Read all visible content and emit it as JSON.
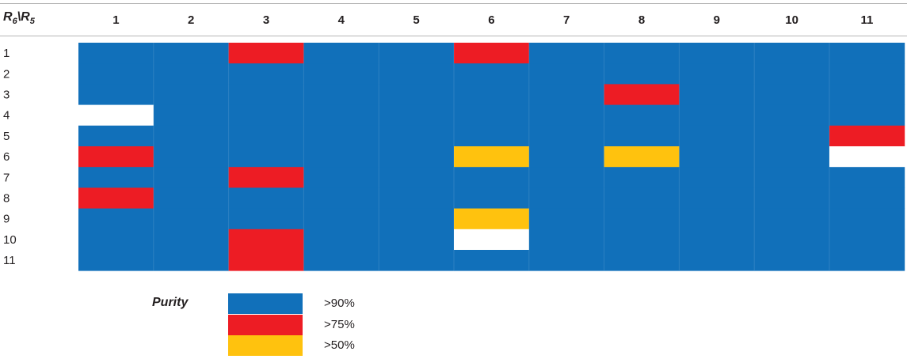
{
  "chart_data": {
    "type": "heatmap",
    "corner_label": {
      "row_var": "R",
      "row_sub": "6",
      "col_var": "R",
      "col_sub": "5"
    },
    "columns": [
      "1",
      "2",
      "3",
      "4",
      "5",
      "6",
      "7",
      "8",
      "9",
      "10",
      "11"
    ],
    "rows": [
      "1",
      "2",
      "3",
      "4",
      "5",
      "6",
      "7",
      "8",
      "9",
      "10",
      "11"
    ],
    "cells": [
      [
        "blue",
        "blue",
        "red",
        "blue",
        "blue",
        "red",
        "blue",
        "blue",
        "blue",
        "blue",
        "blue"
      ],
      [
        "blue",
        "blue",
        "blue",
        "blue",
        "blue",
        "blue",
        "blue",
        "blue",
        "blue",
        "blue",
        "blue"
      ],
      [
        "blue",
        "blue",
        "blue",
        "blue",
        "blue",
        "blue",
        "blue",
        "red",
        "blue",
        "blue",
        "blue"
      ],
      [
        "none",
        "blue",
        "blue",
        "blue",
        "blue",
        "blue",
        "blue",
        "blue",
        "blue",
        "blue",
        "blue"
      ],
      [
        "blue",
        "blue",
        "blue",
        "blue",
        "blue",
        "blue",
        "blue",
        "blue",
        "blue",
        "blue",
        "red"
      ],
      [
        "red",
        "blue",
        "blue",
        "blue",
        "blue",
        "yellow",
        "blue",
        "yellow",
        "blue",
        "blue",
        "none"
      ],
      [
        "blue",
        "blue",
        "red",
        "blue",
        "blue",
        "blue",
        "blue",
        "blue",
        "blue",
        "blue",
        "blue"
      ],
      [
        "red",
        "blue",
        "blue",
        "blue",
        "blue",
        "blue",
        "blue",
        "blue",
        "blue",
        "blue",
        "blue"
      ],
      [
        "blue",
        "blue",
        "blue",
        "blue",
        "blue",
        "yellow",
        "blue",
        "blue",
        "blue",
        "blue",
        "blue"
      ],
      [
        "blue",
        "blue",
        "red",
        "blue",
        "blue",
        "none",
        "blue",
        "blue",
        "blue",
        "blue",
        "blue"
      ],
      [
        "blue",
        "blue",
        "red",
        "blue",
        "blue",
        "blue",
        "blue",
        "blue",
        "blue",
        "blue",
        "blue"
      ]
    ],
    "colors": {
      "blue": "#1170ba",
      "red": "#ed1c24",
      "yellow": "#ffc20e",
      "none": "#ffffff"
    },
    "legend": {
      "title": "Purity",
      "items": [
        {
          "key": "blue",
          "label": ">90%"
        },
        {
          "key": "red",
          "label": ">75%"
        },
        {
          "key": "yellow",
          "label": ">50%"
        }
      ]
    }
  }
}
